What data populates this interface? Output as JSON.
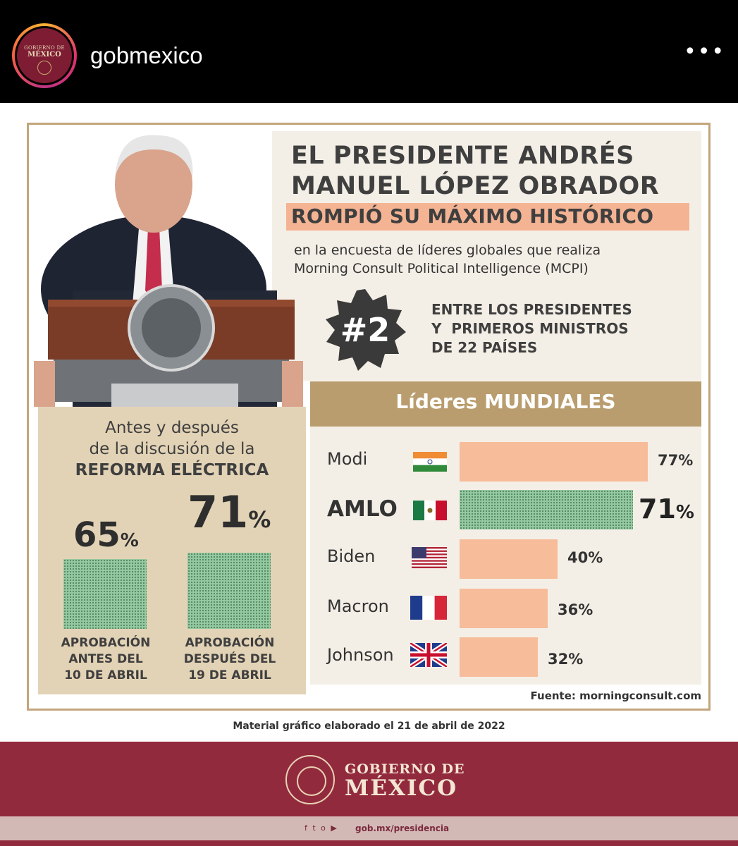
{
  "header": {
    "avatar_line1": "GOBIERNO DE",
    "avatar_line2": "MÉXICO",
    "username": "gobmexico",
    "more_label": "•••"
  },
  "headline": {
    "line1": "EL PRESIDENTE ANDRÉS",
    "line2": "MANUEL LÓPEZ OBRADOR",
    "highlight": "ROMPIÓ SU MÁXIMO HISTÓRICO",
    "sub1": "en la encuesta de líderes globales que realiza",
    "sub2": "Morning Consult Political Intelligence (MCPI)",
    "rank": "#2",
    "rank_line1": "ENTRE LOS PRESIDENTES",
    "rank_line2": "Y  PRIMEROS MINISTROS",
    "rank_line3": "DE 22 PAÍSES"
  },
  "reform": {
    "title1": "Antes y después",
    "title2": "de la discusión de la",
    "title3": "REFORMA ELÉCTRICA",
    "before_value": "65",
    "after_value": "71",
    "pct_sign": "%",
    "before_cap1": "APROBACIÓN",
    "before_cap2": "ANTES DEL",
    "before_cap3": "10 DE ABRIL",
    "after_cap1": "APROBACIÓN",
    "after_cap2": "DESPUÉS DEL",
    "after_cap3": "19 DE ABRIL"
  },
  "leaders": {
    "band_title": "Líderes MUNDIALES",
    "source": "Fuente: morningconsult.com"
  },
  "chart_data": [
    {
      "type": "bar",
      "title": "Líderes MUNDIALES",
      "categories": [
        "Modi",
        "AMLO",
        "Biden",
        "Macron",
        "Johnson"
      ],
      "values": [
        77,
        71,
        40,
        36,
        32
      ],
      "value_labels": [
        "77%",
        "71",
        "40%",
        "36%",
        "32%"
      ],
      "colors": [
        "#f7bc9a",
        "#93c9a0",
        "#f7bc9a",
        "#f7bc9a",
        "#f7bc9a"
      ],
      "ylim": [
        0,
        100
      ]
    },
    {
      "type": "bar",
      "title": "Antes y después de la discusión de la REFORMA ELÉCTRICA",
      "categories": [
        "APROBACIÓN ANTES DEL 10 DE ABRIL",
        "APROBACIÓN DESPUÉS DEL 19 DE ABRIL"
      ],
      "values": [
        65,
        71
      ]
    }
  ],
  "footer": {
    "caption": "Material gráfico elaborado el 21 de abril de 2022",
    "gob_line1": "GOBIERNO DE",
    "gob_line2": "MÉXICO",
    "social_icons": "f t o ▶",
    "url": "gob.mx/presidencia"
  }
}
